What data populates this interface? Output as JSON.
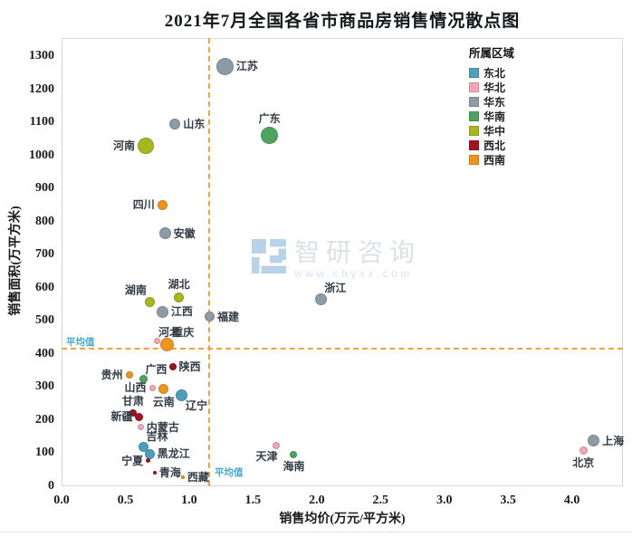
{
  "title": "2021年7月全国各省市商品房销售情况散点图",
  "watermark": {
    "brand": "智研咨询",
    "url": "www.chyxx.com"
  },
  "chart_data": {
    "type": "scatter",
    "title": "2021年7月全国各省市商品房销售情况散点图",
    "xlabel": "销售均价(万元/平方米)",
    "ylabel": "销售面积(万平方米)",
    "xlim": [
      0,
      4.4
    ],
    "ylim": [
      0,
      1355
    ],
    "x_ticks": [
      "0.0",
      "0.5",
      "1.0",
      "1.5",
      "2.0",
      "2.5",
      "3.0",
      "3.5",
      "4.0"
    ],
    "y_ticks": [
      0,
      100,
      200,
      300,
      400,
      500,
      600,
      700,
      800,
      900,
      1000,
      1100,
      1200,
      1300
    ],
    "grid": false,
    "legend_title": "所属区域",
    "legend_position": "top-right",
    "average_label": "平均值",
    "average_x": 1.15,
    "average_y": 420,
    "average_line_color": "#f6a23b",
    "average_label_color": "#3fa9d0",
    "regions": [
      {
        "name": "东北",
        "color": "#4ba0bc"
      },
      {
        "name": "华北",
        "color": "#f4a6b7"
      },
      {
        "name": "华东",
        "color": "#8d9ba7"
      },
      {
        "name": "华南",
        "color": "#4ea45f"
      },
      {
        "name": "华中",
        "color": "#a8b71e"
      },
      {
        "name": "西北",
        "color": "#a4111f"
      },
      {
        "name": "西南",
        "color": "#f0941d"
      }
    ],
    "points": [
      {
        "name": "江苏",
        "region": "华东",
        "x": 1.28,
        "y": 1270,
        "r": 9.5,
        "lp": "right"
      },
      {
        "name": "山东",
        "region": "华东",
        "x": 0.89,
        "y": 1095,
        "r": 6,
        "lp": "right"
      },
      {
        "name": "广东",
        "region": "华南",
        "x": 1.63,
        "y": 1060,
        "r": 9.5,
        "lp": "above"
      },
      {
        "name": "河南",
        "region": "华中",
        "x": 0.66,
        "y": 1030,
        "r": 9,
        "lp": "left"
      },
      {
        "name": "四川",
        "region": "西南",
        "x": 0.79,
        "y": 850,
        "r": 5.5,
        "lp": "left"
      },
      {
        "name": "安徽",
        "region": "华东",
        "x": 0.81,
        "y": 765,
        "r": 6.5,
        "lp": "right"
      },
      {
        "name": "浙江",
        "region": "华东",
        "x": 2.03,
        "y": 565,
        "r": 6.5,
        "lp": "above-right"
      },
      {
        "name": "湖北",
        "region": "华中",
        "x": 0.92,
        "y": 570,
        "r": 5.5,
        "lp": "above"
      },
      {
        "name": "湖南",
        "region": "华中",
        "x": 0.69,
        "y": 558,
        "r": 5.5,
        "lp": "above-left"
      },
      {
        "name": "江西",
        "region": "华东",
        "x": 0.79,
        "y": 528,
        "r": 6.5,
        "lp": "right"
      },
      {
        "name": "福建",
        "region": "华东",
        "x": 1.16,
        "y": 512,
        "r": 5.5,
        "lp": "right"
      },
      {
        "name": "河北",
        "region": "华北",
        "x": 0.75,
        "y": 440,
        "r": 3.5,
        "lp": "above-right"
      },
      {
        "name": "重庆",
        "region": "西南",
        "x": 0.83,
        "y": 428,
        "r": 7.5,
        "lp": "above-right"
      },
      {
        "name": "陕西",
        "region": "西北",
        "x": 0.87,
        "y": 360,
        "r": 4,
        "lp": "right"
      },
      {
        "name": "贵州",
        "region": "西南",
        "x": 0.53,
        "y": 337,
        "r": 4,
        "lp": "left"
      },
      {
        "name": "广西",
        "region": "华南",
        "x": 0.64,
        "y": 325,
        "r": 4.5,
        "lp": "above-right"
      },
      {
        "name": "山西",
        "region": "华北",
        "x": 0.71,
        "y": 298,
        "r": 3.5,
        "lp": "left"
      },
      {
        "name": "云南",
        "region": "西南",
        "x": 0.8,
        "y": 295,
        "r": 5.5,
        "lp": "below"
      },
      {
        "name": "辽宁",
        "region": "东北",
        "x": 0.94,
        "y": 275,
        "r": 6.5,
        "lp": "below-right"
      },
      {
        "name": "甘肃",
        "region": "西北",
        "x": 0.56,
        "y": 222,
        "r": 4,
        "lp": "above"
      },
      {
        "name": "新疆",
        "region": "西北",
        "x": 0.61,
        "y": 210,
        "r": 4.5,
        "lp": "left"
      },
      {
        "name": "内蒙古",
        "region": "华北",
        "x": 0.62,
        "y": 178,
        "r": 3.5,
        "lp": "right"
      },
      {
        "name": "吉林",
        "region": "东北",
        "x": 0.64,
        "y": 120,
        "r": 5.5,
        "lp": "above-right"
      },
      {
        "name": "黑龙江",
        "region": "东北",
        "x": 0.69,
        "y": 98,
        "r": 5.5,
        "lp": "right"
      },
      {
        "name": "宁夏",
        "region": "西北",
        "x": 0.68,
        "y": 77,
        "r": 2.5,
        "lp": "left"
      },
      {
        "name": "青海",
        "region": "西北",
        "x": 0.73,
        "y": 40,
        "r": 2,
        "lp": "right"
      },
      {
        "name": "西藏",
        "region": "西南",
        "x": 0.95,
        "y": 28,
        "r": 2,
        "lp": "right"
      },
      {
        "name": "天津",
        "region": "华北",
        "x": 1.68,
        "y": 123,
        "r": 4,
        "lp": "below-left"
      },
      {
        "name": "海南",
        "region": "华南",
        "x": 1.82,
        "y": 96,
        "r": 4,
        "lp": "below"
      },
      {
        "name": "上海",
        "region": "华东",
        "x": 4.17,
        "y": 137,
        "r": 6.5,
        "lp": "right"
      },
      {
        "name": "北京",
        "region": "华北",
        "x": 4.09,
        "y": 109,
        "r": 4.5,
        "lp": "below"
      }
    ]
  }
}
